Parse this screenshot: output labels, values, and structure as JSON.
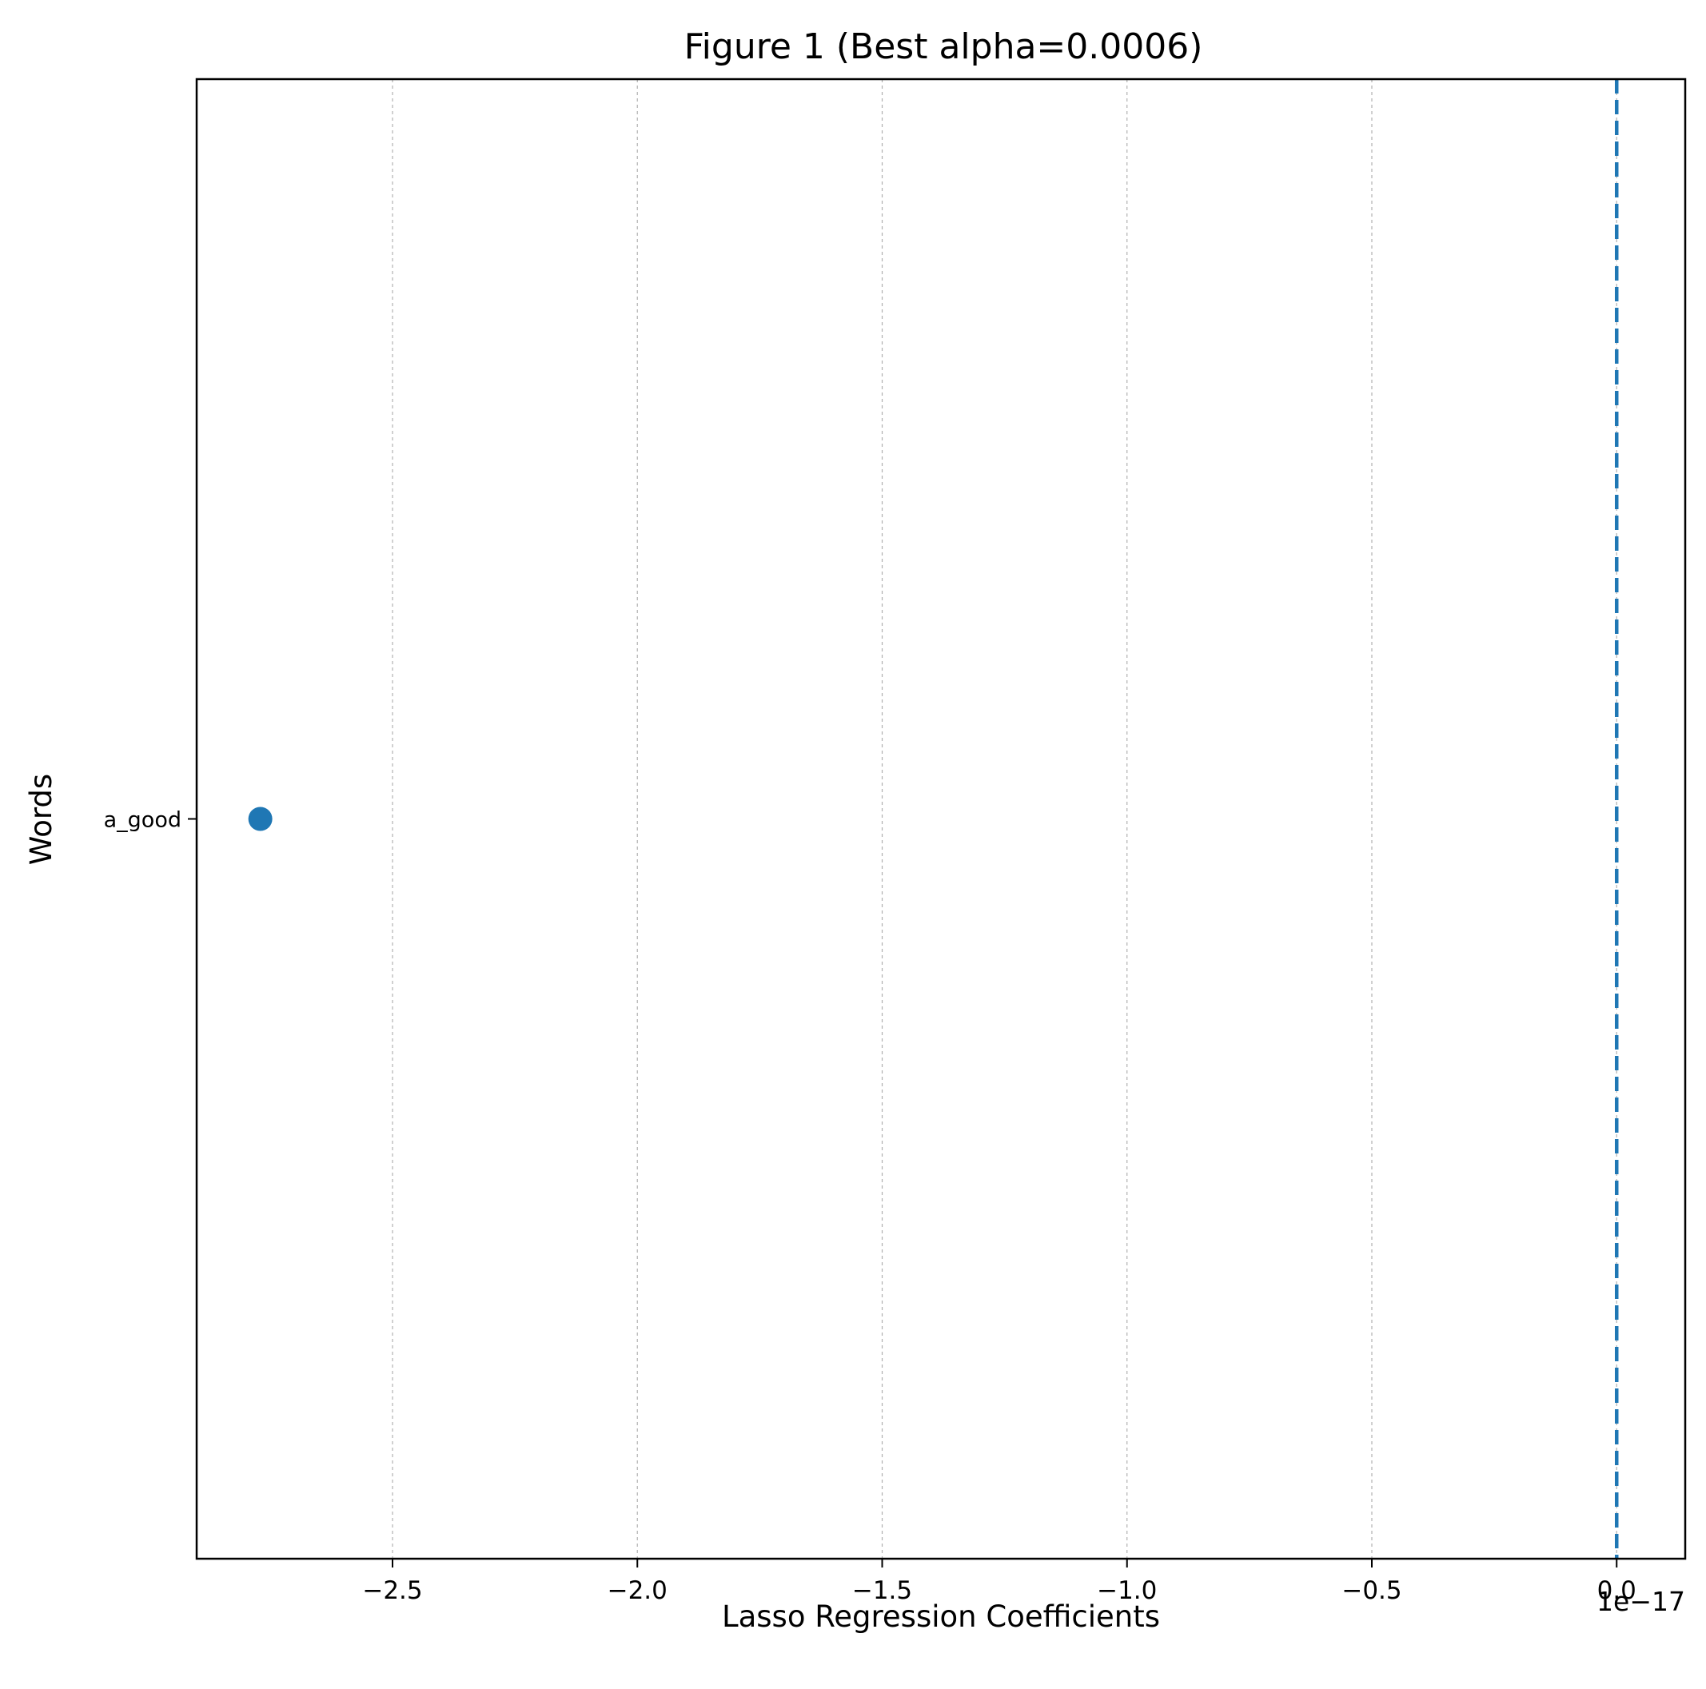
{
  "chart_data": {
    "type": "scatter",
    "title": "Figure 1 (Best alpha=0.0006)",
    "xlabel": "Lasso Regression Coefficients",
    "ylabel": "Words",
    "x_offset_label": "1e−17",
    "xlim": [
      -2.9,
      0.14
    ],
    "xticks": [
      -2.5,
      -2.0,
      -1.5,
      -1.0,
      -0.5,
      0.0
    ],
    "xtick_labels": [
      "−2.5",
      "−2.0",
      "−1.5",
      "−1.0",
      "−0.5",
      "0.0"
    ],
    "x_scale_multiplier": 1e-17,
    "categories": [
      "a_good"
    ],
    "points": [
      {
        "label": "a_good",
        "x": -2.77
      }
    ],
    "reference_line": {
      "x": 0.0,
      "style": "dashed"
    },
    "grid": {
      "x": true,
      "y": false,
      "style": "dashed"
    },
    "colors": {
      "points": "#1f77b4",
      "reference_line": "#1f77b4",
      "grid": "#b0b0b0"
    }
  }
}
